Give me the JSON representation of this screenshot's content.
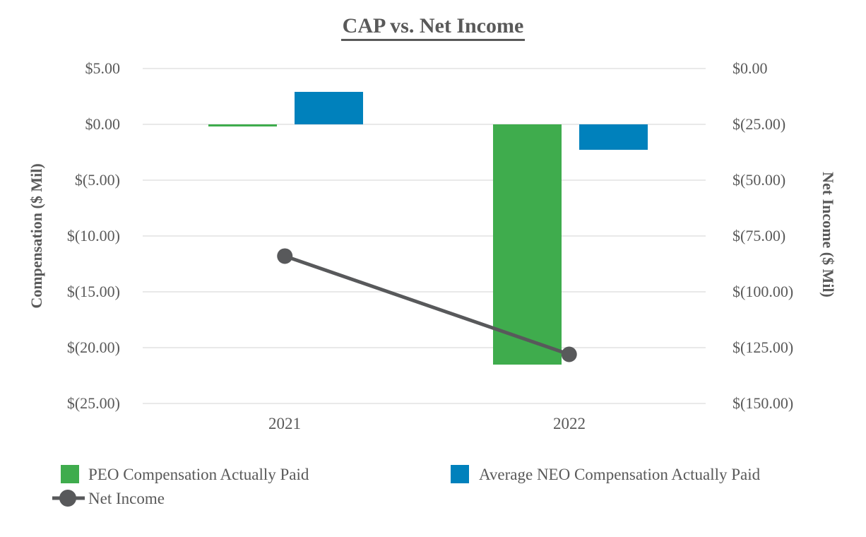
{
  "title": "CAP vs. Net Income",
  "chart_data": {
    "type": "combo-bar-line",
    "categories": [
      "2021",
      "2022"
    ],
    "series": [
      {
        "name": "PEO Compensation Actually Paid",
        "type": "bar",
        "axis": "left",
        "color": "#3FAC4D",
        "values": [
          -0.2,
          -21.5
        ]
      },
      {
        "name": "Average NEO Compensation Actually Paid",
        "type": "bar",
        "axis": "left",
        "color": "#0081BC",
        "values": [
          2.9,
          -2.3
        ]
      },
      {
        "name": "Net Income",
        "type": "line",
        "axis": "right",
        "color": "#58595B",
        "values": [
          -84,
          -128
        ]
      }
    ],
    "left_axis": {
      "label": "Compensation ($ Mil)",
      "max": 5,
      "min": -25,
      "tick_labels": [
        "$5.00",
        "$0.00",
        "$(5.00)",
        "$(10.00)",
        "$(15.00)",
        "$(20.00)",
        "$(25.00)"
      ],
      "tick_values": [
        5,
        0,
        -5,
        -10,
        -15,
        -20,
        -25
      ]
    },
    "right_axis": {
      "label": "Net Income ($ Mil)",
      "max": 0,
      "min": -150,
      "tick_labels": [
        "$0.00",
        "$(25.00)",
        "$(50.00)",
        "$(75.00)",
        "$(100.00)",
        "$(125.00)",
        "$(150.00)"
      ],
      "tick_values": [
        0,
        -25,
        -50,
        -75,
        -100,
        -125,
        -150
      ]
    },
    "grid": true,
    "legend_position": "bottom",
    "styles": {
      "text_color": "#595959",
      "gridline_color": "#E9E9E9",
      "background": "#FFFFFF",
      "marker_radius": 11,
      "line_width": 5
    }
  }
}
